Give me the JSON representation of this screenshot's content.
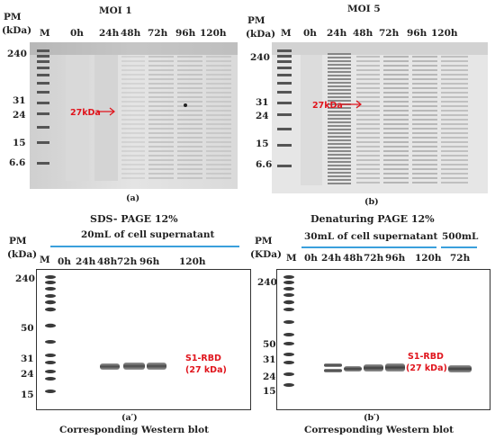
{
  "panel_a": {
    "header_pm": "PM",
    "header_kda": "(kDa)",
    "title": "MOI 1",
    "lanes": [
      "M",
      "0h",
      "24h",
      "48h",
      "72h",
      "96h",
      "120h"
    ],
    "markers": [
      "240",
      "31",
      "24",
      "15",
      "6.6"
    ],
    "arrow_label": "27kDa",
    "caption": "(a)"
  },
  "panel_b": {
    "header_pm": "PM",
    "header_kda": "(kDa)",
    "title": "MOI 5",
    "lanes": [
      "M",
      "0h",
      "24h",
      "48h",
      "72h",
      "96h",
      "120h"
    ],
    "markers": [
      "240",
      "31",
      "24",
      "15",
      "6.6"
    ],
    "arrow_label": "27kDa",
    "caption": "(b)"
  },
  "panel_a_prime": {
    "top_title": "SDS- PAGE 12%",
    "group_label": "20mL of cell supernatant",
    "pm": "PM",
    "kda": "(kDa)",
    "lanes": [
      "M",
      "0h",
      "24h",
      "48h",
      "72h",
      "96h",
      "120h"
    ],
    "markers": [
      "240",
      "50",
      "31",
      "24",
      "15"
    ],
    "band_label_1": "S1-RBD",
    "band_label_2": "(27 kDa)",
    "caption": "(a′)",
    "subcaption": "Corresponding Western blot"
  },
  "panel_b_prime": {
    "top_title": "Denaturing PAGE 12%",
    "group_label": "30mL of cell supernatant",
    "group_label_2": "500mL",
    "pm": "PM",
    "kda": "(KDa)",
    "lanes": [
      "M",
      "0h",
      "24h",
      "48h",
      "72h",
      "96h",
      "120h",
      "72h"
    ],
    "markers": [
      "240",
      "50",
      "31",
      "24",
      "15"
    ],
    "band_label_1": "S1-RBD",
    "band_label_2": "(27 kDa)",
    "caption": "(b′)",
    "subcaption": "Corresponding Western blot"
  },
  "colors": {
    "divider_line": "#3aa0dc",
    "annotation": "#e0141c"
  }
}
